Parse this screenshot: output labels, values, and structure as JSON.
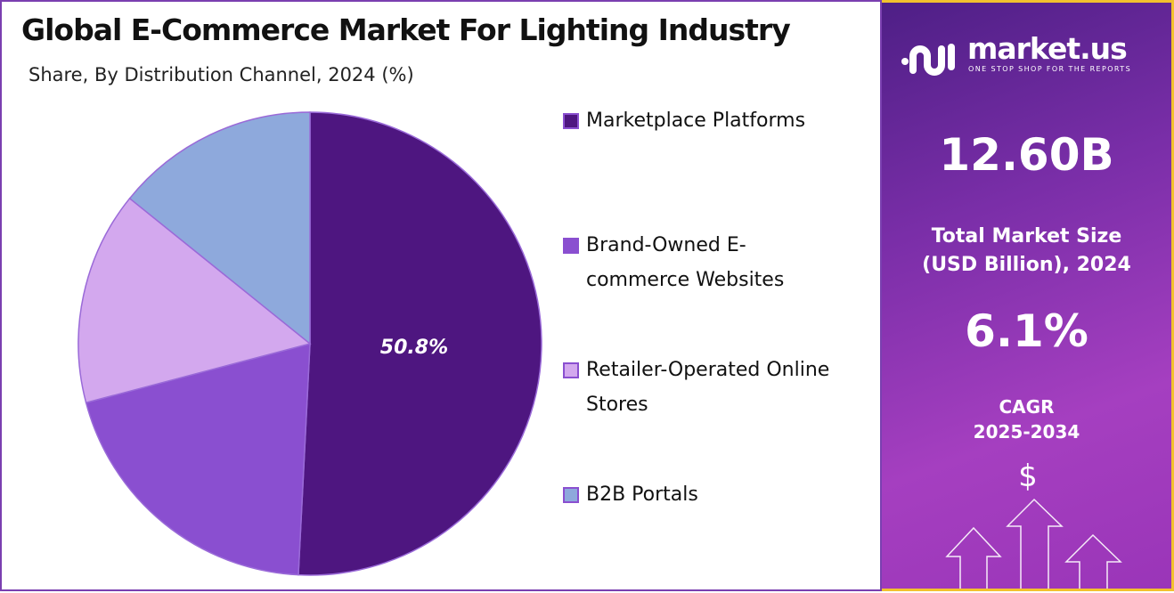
{
  "title": "Global E-Commerce Market For Lighting Industry",
  "subtitle": "Share, By Distribution Channel, 2024 (%)",
  "chart_data": {
    "type": "pie",
    "title": "Global E-Commerce Market For Lighting Industry",
    "subtitle": "Share, By Distribution Channel, 2024 (%)",
    "categories": [
      "Marketplace Platforms",
      "Brand-Owned E-commerce Websites",
      "Retailer-Operated Online Stores",
      "B2B Portals"
    ],
    "values": [
      50.8,
      20.1,
      14.9,
      14.2
    ],
    "colors": [
      "#4e1680",
      "#8a4fd0",
      "#d3a8ee",
      "#8ea9dc"
    ],
    "data_labels": [
      "50.8%",
      "",
      "",
      ""
    ],
    "legend_position": "right"
  },
  "legend": [
    {
      "label_lines": [
        "Marketplace Platforms"
      ]
    },
    {
      "label_lines": [
        "Brand-Owned E-",
        "commerce Websites"
      ]
    },
    {
      "label_lines": [
        "Retailer-Operated Online",
        "Stores"
      ]
    },
    {
      "label_lines": [
        "B2B Portals"
      ]
    }
  ],
  "panel": {
    "logo_name": "market.us",
    "logo_tagline": "ONE STOP SHOP FOR THE REPORTS",
    "market_size": "12.60B",
    "market_size_label_1": "Total Market Size",
    "market_size_label_2": "(USD Billion), 2024",
    "cagr": "6.1%",
    "cagr_label_1": "CAGR",
    "cagr_label_2": "2025-2034",
    "dollar_icon": "$"
  }
}
